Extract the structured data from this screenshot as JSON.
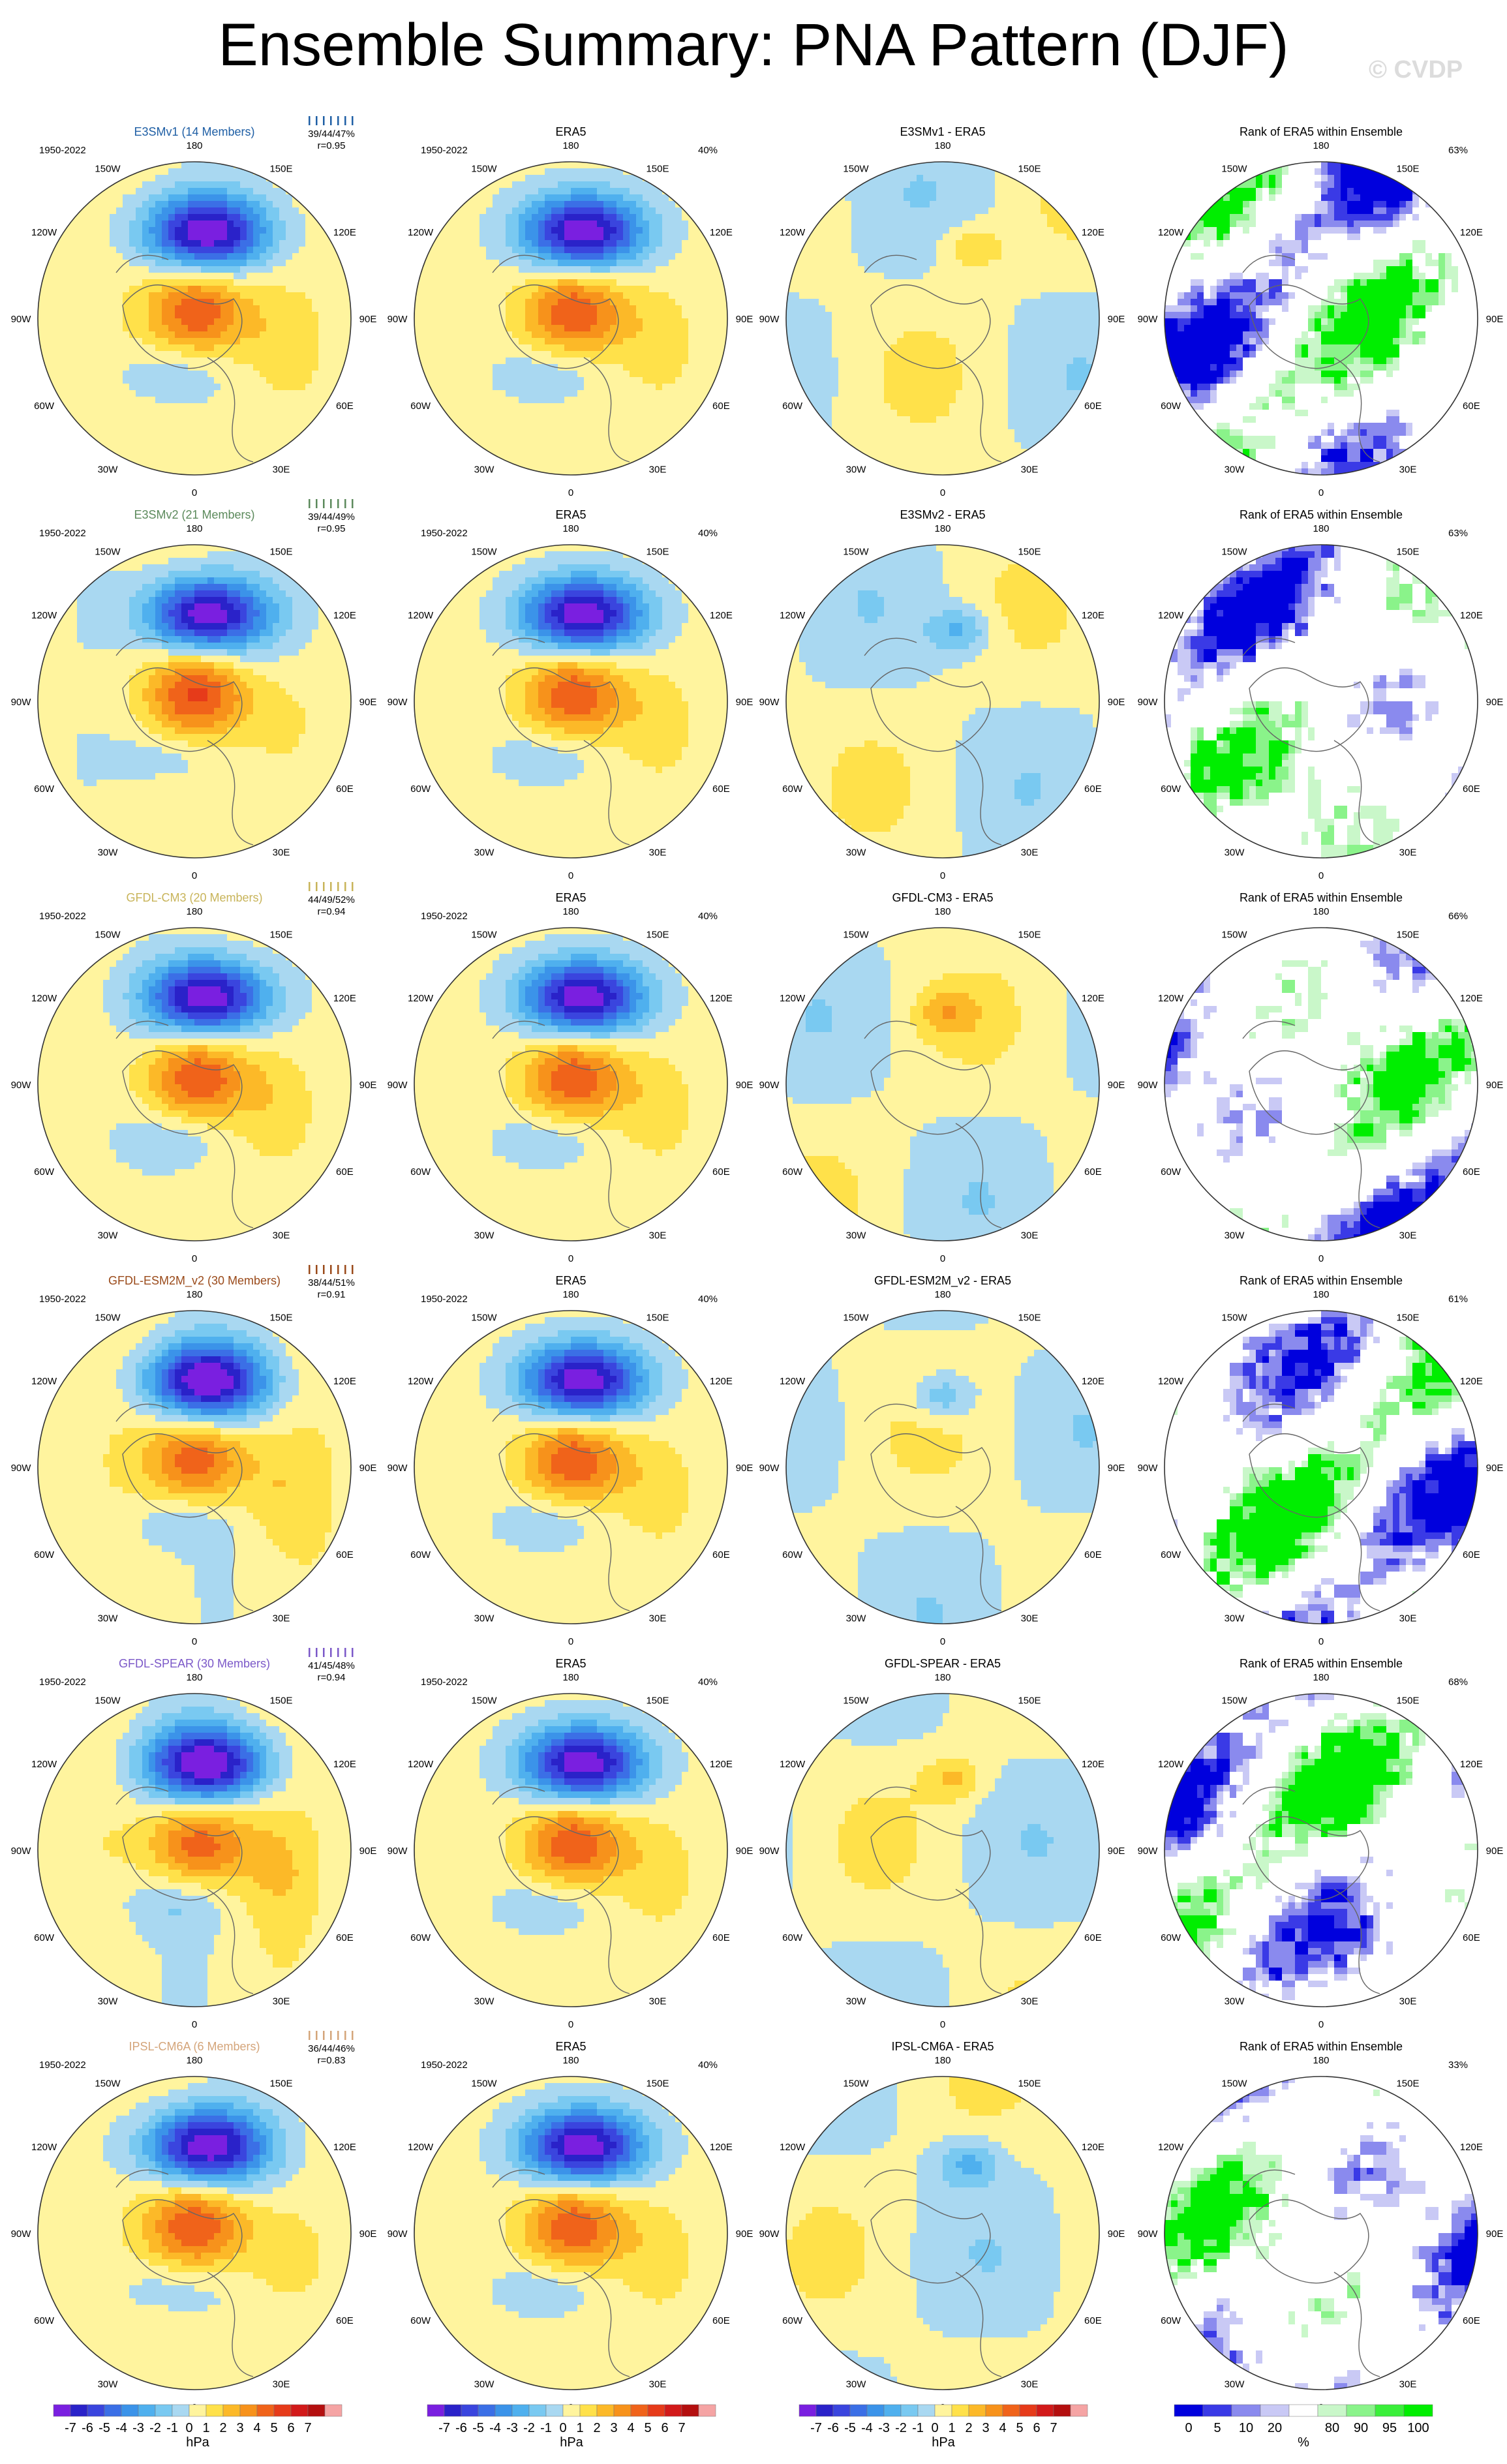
{
  "title": "Ensemble Summary: PNA Pattern (DJF)",
  "watermark": "© CVDP",
  "colors": {
    "pos": [
      "#fff49e",
      "#ffe14a",
      "#fcb928",
      "#f7921b",
      "#f0631a",
      "#e63b1a",
      "#d21a1a",
      "#b40f0f",
      "#f5a4a4"
    ],
    "neg": [
      "#a9d8f1",
      "#79c9f1",
      "#4fb0ee",
      "#3b93e9",
      "#3b6fe6",
      "#3a45de",
      "#2a22c9",
      "#7a1fe0"
    ],
    "rank_blue": [
      "#0000dd",
      "#3a3ae6",
      "#8a8aee",
      "#c9c9f5"
    ],
    "rank_green": [
      "#c9f7c9",
      "#8af38a",
      "#3aef3a",
      "#00ee00"
    ]
  },
  "chart_data": {
    "type": "polar_map_grid",
    "variable": "PNA Pattern (DJF)",
    "period": "1950-2022",
    "units": "hPa",
    "column_titles": [
      "model ensemble",
      "ERA5",
      "model - ERA5",
      "Rank of ERA5 within Ensemble"
    ],
    "longitude_labels": [
      "180",
      "150E",
      "120E",
      "90E",
      "60E",
      "30E",
      "0",
      "30W",
      "60W",
      "90W",
      "120W",
      "150W"
    ],
    "contour_levels": [
      -7,
      -6,
      -5,
      -4,
      -3,
      -2,
      -1,
      0,
      1,
      2,
      3,
      4,
      5,
      6,
      7
    ],
    "contour_labels": [
      "-7",
      "-6",
      "-5",
      "-4",
      "-3",
      "-2",
      "-1",
      "0",
      "1",
      "2",
      "3",
      "4",
      "5",
      "6",
      "7"
    ],
    "rank_levels": [
      "0",
      "5",
      "10",
      "20",
      "80",
      "90",
      "95",
      "100"
    ],
    "rank_unit": "%",
    "rows": [
      {
        "model": "E3SMv1",
        "members_label": "E3SMv1 (14 Members)",
        "color": "#1f5fa5",
        "pct": "39/44/47%",
        "r": "r=0.95",
        "era5_pct": "40%",
        "diff_title": "E3SMv1 - ERA5",
        "rank_title": "Rank of ERA5 within Ensemble",
        "rank_pct": "63%"
      },
      {
        "model": "E3SMv2",
        "members_label": "E3SMv2 (21 Members)",
        "color": "#5c8a5c",
        "pct": "39/44/49%",
        "r": "r=0.95",
        "era5_pct": "40%",
        "diff_title": "E3SMv2 - ERA5",
        "rank_title": "Rank of ERA5 within Ensemble",
        "rank_pct": "63%"
      },
      {
        "model": "GFDL-CM3",
        "members_label": "GFDL-CM3 (20 Members)",
        "color": "#c8b45a",
        "pct": "44/49/52%",
        "r": "r=0.94",
        "era5_pct": "40%",
        "diff_title": "GFDL-CM3 - ERA5",
        "rank_title": "Rank of ERA5 within Ensemble",
        "rank_pct": "66%"
      },
      {
        "model": "GFDL-ESM2M_v2",
        "members_label": "GFDL-ESM2M_v2 (30 Members)",
        "color": "#9a4a1a",
        "pct": "38/44/51%",
        "r": "r=0.91",
        "era5_pct": "40%",
        "diff_title": "GFDL-ESM2M_v2 - ERA5",
        "rank_title": "Rank of ERA5 within Ensemble",
        "rank_pct": "61%"
      },
      {
        "model": "GFDL-SPEAR",
        "members_label": "GFDL-SPEAR (30 Members)",
        "color": "#7b58c8",
        "pct": "41/45/48%",
        "r": "r=0.94",
        "era5_pct": "40%",
        "diff_title": "GFDL-SPEAR - ERA5",
        "rank_title": "Rank of ERA5 within Ensemble",
        "rank_pct": "68%"
      },
      {
        "model": "IPSL-CM6A",
        "members_label": "IPSL-CM6A (6 Members)",
        "color": "#d4a57a",
        "pct": "36/44/46%",
        "r": "r=0.83",
        "era5_pct": "40%",
        "diff_title": "IPSL-CM6A - ERA5",
        "rank_title": "Rank of ERA5 within Ensemble",
        "rank_pct": "33%"
      }
    ],
    "era5_title": "ERA5"
  }
}
